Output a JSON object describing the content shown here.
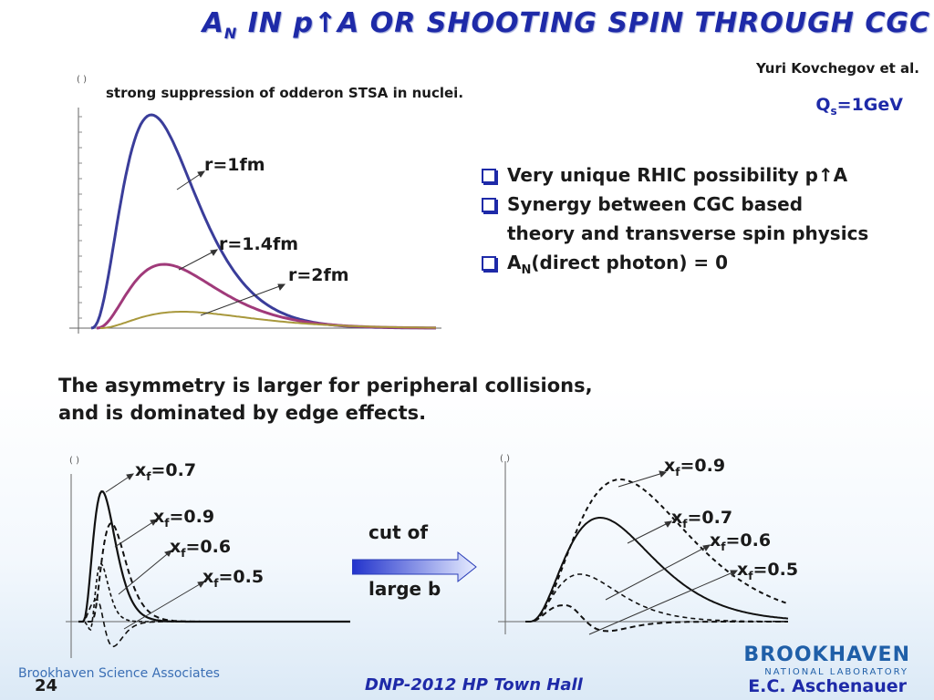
{
  "header": {
    "title_a": "A",
    "title_sub": "N",
    "title_b": " IN p",
    "title_arrow": "↑",
    "title_c": "A OR ",
    "title_d": "SHOOTING SPIN THROUGH CGC",
    "author": "Yuri Kovchegov et al.",
    "qs_main": "Q",
    "qs_sub": "s",
    "qs_rest": "=1GeV"
  },
  "top_chart": {
    "note": "strong suppression of odderon STSA in nuclei.",
    "axis_mark": "( )",
    "labels": [
      "r=1fm",
      "r=1.4fm",
      "r=2fm"
    ],
    "colors": [
      "#3a3d9a",
      "#a03a7a",
      "#a8983c"
    ]
  },
  "bullets": {
    "items": [
      {
        "text": "Very unique RHIC possibility p↑A"
      },
      {
        "text": "Synergy between CGC based"
      },
      {
        "text": "theory and transverse spin physics"
      }
    ],
    "item4_a": "A",
    "item4_sub": "N",
    "item4_b": "(direct photon) = 0"
  },
  "statement": {
    "line1": "The asymmetry is larger for peripheral collisions,",
    "line2": "and is dominated by edge effects."
  },
  "bottom_left_chart": {
    "axis_mark": "( )",
    "labels": [
      {
        "x": "x",
        "sub": "f",
        "val": "=0.7"
      },
      {
        "x": "x",
        "sub": "f",
        "val": "=0.9"
      },
      {
        "x": "x",
        "sub": "f",
        "val": "=0.6"
      },
      {
        "x": "x",
        "sub": "f",
        "val": "=0.5"
      }
    ]
  },
  "arrow": {
    "top": "cut of",
    "bottom": "large b"
  },
  "bottom_right_chart": {
    "axis_mark": "( )",
    "labels": [
      {
        "x": "x",
        "sub": "f",
        "val": "=0.9"
      },
      {
        "x": "x",
        "sub": "f",
        "val": "=0.7"
      },
      {
        "x": "x",
        "sub": "f",
        "val": "=0.6"
      },
      {
        "x": "x",
        "sub": "f",
        "val": "=0.5"
      }
    ]
  },
  "footer": {
    "org": "Brookhaven Science Associates",
    "page": "24",
    "conference": "DNP-2012 HP Town Hall",
    "presenter": "E.C. Aschenauer",
    "logo_main": "BROOKHAVEN",
    "logo_sub": "NATIONAL LABORATORY"
  }
}
